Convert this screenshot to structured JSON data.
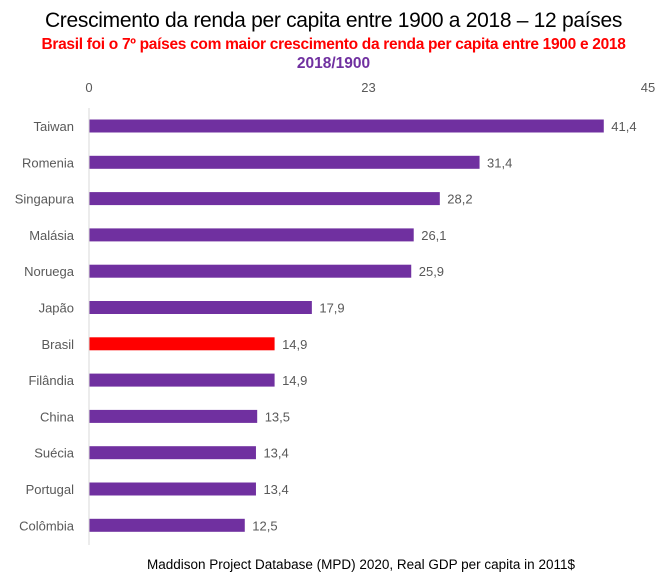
{
  "chart_data": {
    "type": "bar",
    "orientation": "horizontal",
    "title": "Crescimento da renda per capita entre 1900 a 2018 – 12 países",
    "subtitle": "Brasil foi o 7º países com maior crescimento da renda per capita entre 1900 e 2018",
    "subtitle2": "2018/1900",
    "source": "Maddison Project Database (MPD) 2020, Real GDP per capita in 2011$",
    "categories": [
      "Taiwan",
      "Romenia",
      "Singapura",
      "Malásia",
      "Noruega",
      "Japão",
      "Brasil",
      "Filândia",
      "China",
      "Suécia",
      "Portugal",
      "Colômbia"
    ],
    "values": [
      41.4,
      31.4,
      28.2,
      26.1,
      25.9,
      17.9,
      14.9,
      14.9,
      13.5,
      13.4,
      13.4,
      12.5
    ],
    "value_labels": [
      "41,4",
      "31,4",
      "28,2",
      "26,1",
      "25,9",
      "17,9",
      "14,9",
      "14,9",
      "13,5",
      "13,4",
      "13,4",
      "12,5"
    ],
    "xlim": [
      0,
      45
    ],
    "xticks": [
      "0",
      "23",
      "45"
    ],
    "xtick_values": [
      0,
      22.5,
      45
    ],
    "axis_position": "top",
    "grid": false,
    "colors": {
      "default": "#7030a0",
      "highlight": "#ff0000"
    },
    "highlight": "Brasil"
  }
}
